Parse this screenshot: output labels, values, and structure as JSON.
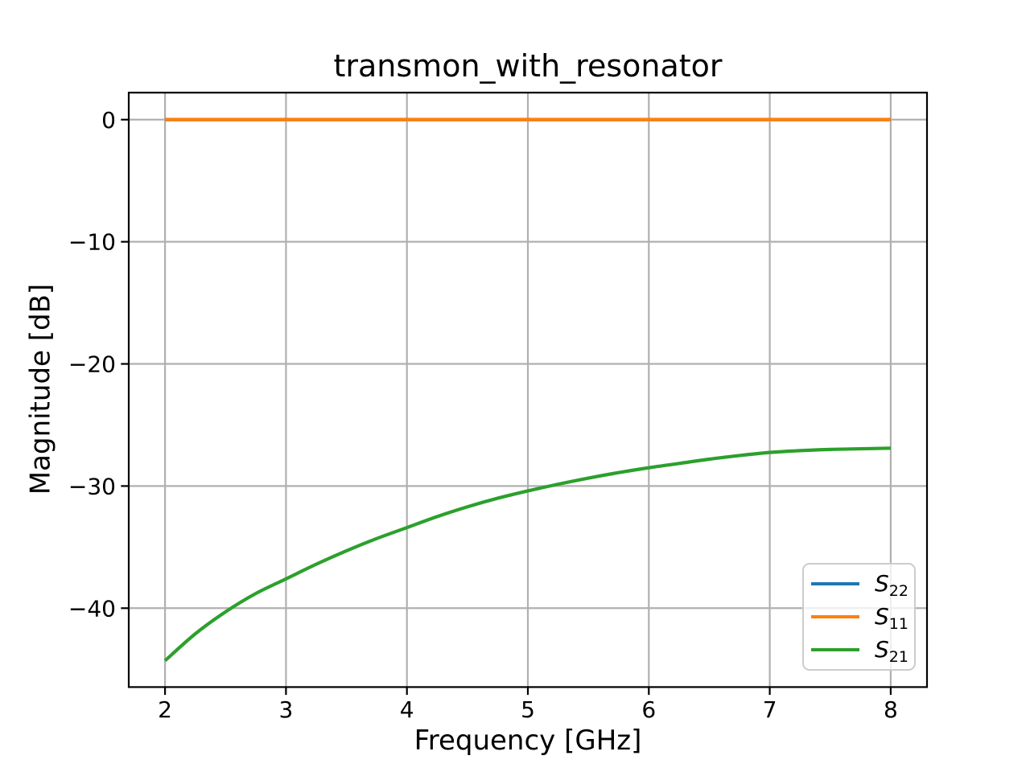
{
  "chart_data": {
    "type": "line",
    "title": "transmon_with_resonator",
    "xlabel": "Frequency [GHz]",
    "ylabel": "Magnitude [dB]",
    "xlim": [
      1.7,
      8.3
    ],
    "ylim": [
      -46.46,
      2.21
    ],
    "grid": true,
    "legend_position": "lower right",
    "x_ticks": [
      {
        "value": 2,
        "label": "2"
      },
      {
        "value": 3,
        "label": "3"
      },
      {
        "value": 4,
        "label": "4"
      },
      {
        "value": 5,
        "label": "5"
      },
      {
        "value": 6,
        "label": "6"
      },
      {
        "value": 7,
        "label": "7"
      },
      {
        "value": 8,
        "label": "8"
      }
    ],
    "y_ticks": [
      {
        "value": 0,
        "label": "0"
      },
      {
        "value": -10,
        "label": "−10"
      },
      {
        "value": -20,
        "label": "−20"
      },
      {
        "value": -30,
        "label": "−30"
      },
      {
        "value": -40,
        "label": "−40"
      }
    ],
    "series": [
      {
        "name": "S22",
        "label_main": "S",
        "label_sub": "22",
        "color": "#1f77b4",
        "x": [
          2,
          8
        ],
        "y": [
          0,
          0
        ]
      },
      {
        "name": "S11",
        "label_main": "S",
        "label_sub": "11",
        "color": "#ff7f0e",
        "x": [
          2,
          8
        ],
        "y": [
          0,
          0
        ]
      },
      {
        "name": "S21",
        "label_main": "S",
        "label_sub": "21",
        "color": "#2ca02c",
        "x": [
          2.0,
          2.25,
          2.5,
          2.75,
          3.0,
          3.25,
          3.5,
          3.75,
          4.0,
          4.25,
          4.5,
          4.75,
          5.0,
          5.25,
          5.5,
          5.75,
          6.0,
          6.25,
          6.5,
          6.75,
          7.0,
          7.25,
          7.5,
          7.75,
          8.0
        ],
        "y": [
          -44.3,
          -42.1,
          -40.3,
          -38.8,
          -37.6,
          -36.4,
          -35.3,
          -34.3,
          -33.4,
          -32.5,
          -31.7,
          -31.0,
          -30.4,
          -29.85,
          -29.35,
          -28.9,
          -28.5,
          -28.15,
          -27.8,
          -27.5,
          -27.25,
          -27.1,
          -27.0,
          -26.95,
          -26.9
        ]
      }
    ],
    "style": {
      "grid_color": "#b0b0b0",
      "spine_color": "#000000",
      "background_color": "#ffffff",
      "tick_label_color": "#000000"
    }
  }
}
